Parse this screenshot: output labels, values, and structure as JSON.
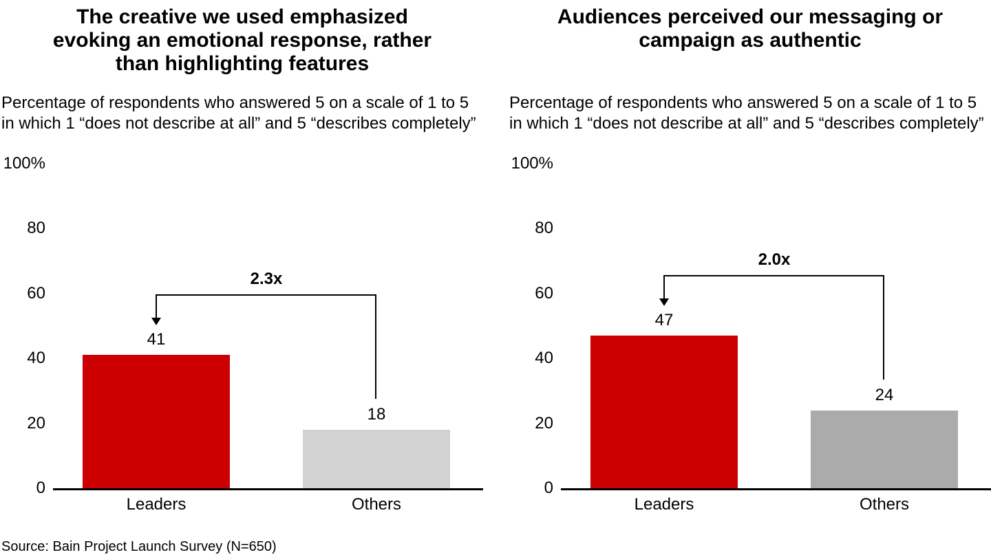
{
  "chart_data": [
    {
      "type": "bar",
      "title": "The creative we used emphasized evoking an emotional response, rather than highlighting features",
      "subtitle": "Percentage of respondents who answered 5 on a scale of 1 to 5 in which 1 “does not describe at all” and 5 “describes completely”",
      "categories": [
        "Leaders",
        "Others"
      ],
      "values": [
        41,
        18
      ],
      "annotation": "2.3x",
      "ylim": [
        0,
        100
      ],
      "ytick_labels": [
        "100%",
        "80",
        "60",
        "40",
        "20",
        "0"
      ],
      "bar_colors": [
        "#cc0000",
        "#d2d2d2"
      ],
      "axis_color": "#000000",
      "xlabel": "",
      "ylabel": "",
      "grid": false,
      "legend": "none"
    },
    {
      "type": "bar",
      "title": "Audiences perceived our messaging or campaign as authentic",
      "subtitle": "Percentage of respondents who answered 5 on a scale of 1 to 5 in which 1 “does not describe at all” and 5 “describes completely”",
      "categories": [
        "Leaders",
        "Others"
      ],
      "values": [
        47,
        24
      ],
      "annotation": "2.0x",
      "ylim": [
        0,
        100
      ],
      "ytick_labels": [
        "100%",
        "80",
        "60",
        "40",
        "20",
        "0"
      ],
      "bar_colors": [
        "#cc0000",
        "#ababab"
      ],
      "axis_color": "#000000",
      "xlabel": "",
      "ylabel": "",
      "grid": false,
      "legend": "none"
    }
  ],
  "footer": {
    "source": "Source: Bain Project Launch Survey (N=650)"
  }
}
